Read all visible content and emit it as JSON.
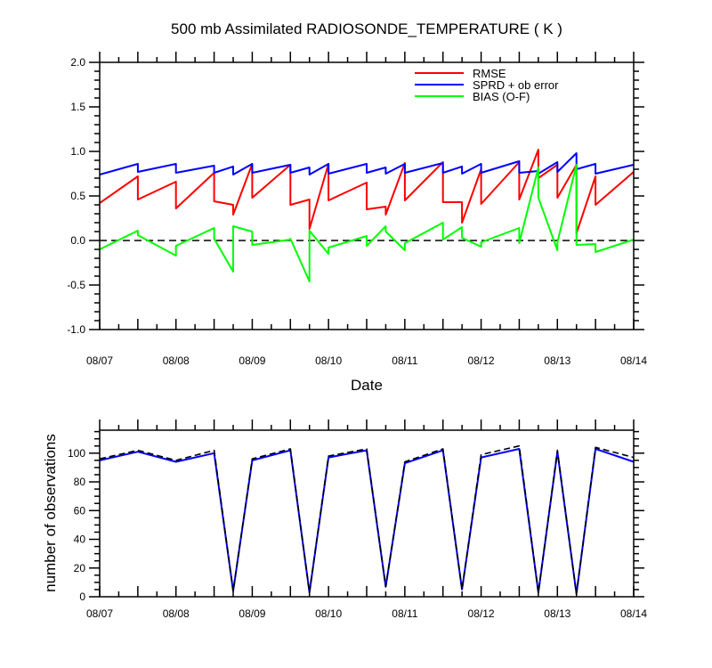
{
  "chart_data": [
    {
      "type": "line",
      "title": "500 mb Assimilated RADIOSONDE_TEMPERATURE ( K )",
      "xlabel": "Date",
      "ylabel": "",
      "x_tick_labels": [
        "08/07",
        "08/08",
        "08/09",
        "08/10",
        "08/11",
        "08/12",
        "08/13",
        "08/14"
      ],
      "x_tick_days": [
        7,
        8,
        9,
        10,
        11,
        12,
        13,
        14
      ],
      "xlim": [
        7,
        14
      ],
      "ylim": [
        -1.0,
        2.0
      ],
      "y_ticks": [
        -1.0,
        -0.5,
        0.0,
        0.5,
        1.0,
        1.5,
        2.0
      ],
      "y_tick_labels": [
        "-1.0",
        "-0.5",
        "0.0",
        "0.5",
        "1.0",
        "1.5",
        "2.0"
      ],
      "reference_line": {
        "y": 0.0,
        "style": "dashed",
        "color": "#000000"
      },
      "legend_position": "top-right",
      "series": [
        {
          "name": "RMSE",
          "color": "#ff0000",
          "x": [
            7.0,
            7.5,
            7.5,
            8.0,
            8.0,
            8.5,
            8.5,
            8.75,
            8.75,
            9.0,
            9.0,
            9.5,
            9.5,
            9.75,
            9.75,
            10.0,
            10.0,
            10.5,
            10.5,
            10.75,
            10.75,
            11.0,
            11.0,
            11.5,
            11.5,
            11.75,
            11.75,
            12.0,
            12.0,
            12.5,
            12.5,
            12.75,
            12.75,
            13.0,
            13.0,
            13.25,
            13.25,
            13.5,
            13.5,
            14.0
          ],
          "y": [
            0.42,
            0.72,
            0.46,
            0.66,
            0.36,
            0.76,
            0.44,
            0.4,
            0.29,
            0.86,
            0.48,
            0.85,
            0.4,
            0.46,
            0.13,
            0.86,
            0.45,
            0.65,
            0.35,
            0.38,
            0.29,
            0.87,
            0.45,
            0.88,
            0.43,
            0.43,
            0.2,
            0.8,
            0.41,
            0.88,
            0.46,
            1.02,
            0.7,
            0.85,
            0.48,
            0.85,
            0.08,
            0.72,
            0.4,
            0.77
          ]
        },
        {
          "name": "SPRD + ob error",
          "color": "#0000ff",
          "x": [
            7.0,
            7.5,
            7.5,
            8.0,
            8.0,
            8.5,
            8.5,
            8.75,
            8.75,
            9.0,
            9.0,
            9.5,
            9.5,
            9.75,
            9.75,
            10.0,
            10.0,
            10.5,
            10.5,
            10.75,
            10.75,
            11.0,
            11.0,
            11.5,
            11.5,
            11.75,
            11.75,
            12.0,
            12.0,
            12.5,
            12.5,
            12.75,
            12.75,
            13.0,
            13.0,
            13.25,
            13.25,
            13.5,
            13.5,
            14.0
          ],
          "y": [
            0.74,
            0.86,
            0.77,
            0.86,
            0.76,
            0.84,
            0.76,
            0.83,
            0.74,
            0.86,
            0.76,
            0.85,
            0.76,
            0.82,
            0.74,
            0.86,
            0.75,
            0.86,
            0.76,
            0.82,
            0.75,
            0.86,
            0.76,
            0.87,
            0.76,
            0.83,
            0.75,
            0.86,
            0.76,
            0.89,
            0.76,
            0.78,
            0.75,
            0.88,
            0.77,
            0.98,
            0.8,
            0.86,
            0.75,
            0.85
          ]
        },
        {
          "name": "BIAS (O-F)",
          "color": "#00ff00",
          "x": [
            7.0,
            7.5,
            7.5,
            8.0,
            8.0,
            8.5,
            8.5,
            8.75,
            8.75,
            9.0,
            9.0,
            9.5,
            9.5,
            9.75,
            9.75,
            10.0,
            10.0,
            10.5,
            10.5,
            10.75,
            10.75,
            11.0,
            11.0,
            11.5,
            11.5,
            11.75,
            11.75,
            12.0,
            12.0,
            12.5,
            12.5,
            12.75,
            12.75,
            13.0,
            13.0,
            13.25,
            13.25,
            13.5,
            13.5,
            14.0
          ],
          "y": [
            -0.1,
            0.11,
            0.06,
            -0.17,
            -0.06,
            0.14,
            0.02,
            -0.35,
            0.16,
            0.1,
            -0.05,
            0.01,
            0.02,
            -0.46,
            0.11,
            -0.15,
            -0.08,
            0.05,
            -0.06,
            0.16,
            0.1,
            -0.11,
            -0.03,
            0.2,
            0.01,
            0.15,
            0.03,
            -0.07,
            -0.02,
            0.14,
            -0.03,
            0.82,
            0.48,
            -0.11,
            -0.02,
            0.85,
            -0.05,
            -0.04,
            -0.13,
            0.01
          ]
        }
      ]
    },
    {
      "type": "line",
      "title": "",
      "xlabel": "",
      "ylabel": "number of observations",
      "x_tick_labels": [
        "08/07",
        "08/08",
        "08/09",
        "08/10",
        "08/11",
        "08/12",
        "08/13",
        "08/14"
      ],
      "x_tick_days": [
        7,
        8,
        9,
        10,
        11,
        12,
        13,
        14
      ],
      "xlim": [
        7,
        14
      ],
      "ylim": [
        0,
        116
      ],
      "y_ticks": [
        0,
        20,
        40,
        60,
        80,
        100
      ],
      "y_tick_labels": [
        "0",
        "20",
        "40",
        "60",
        "80",
        "100"
      ],
      "series": [
        {
          "color": "#0000ff",
          "style": "solid",
          "x": [
            7.0,
            7.5,
            8.0,
            8.5,
            8.75,
            9.0,
            9.5,
            9.75,
            10.0,
            10.5,
            10.75,
            11.0,
            11.5,
            11.75,
            12.0,
            12.5,
            12.75,
            13.0,
            13.25,
            13.5,
            14.0
          ],
          "y": [
            95,
            101,
            94,
            100,
            4,
            95,
            102,
            3,
            97,
            102,
            7,
            93,
            102,
            5,
            97,
            103,
            3,
            101,
            2,
            103,
            94
          ]
        },
        {
          "color": "#000000",
          "style": "dashed",
          "x": [
            7.0,
            7.5,
            8.0,
            8.5,
            8.75,
            9.0,
            9.5,
            9.75,
            10.0,
            10.5,
            10.75,
            11.0,
            11.5,
            11.75,
            12.0,
            12.5,
            12.75,
            13.0,
            13.25,
            13.5,
            14.0
          ],
          "y": [
            96,
            102,
            95,
            102,
            4,
            96,
            103,
            3,
            98,
            103,
            7,
            94,
            103,
            5,
            99,
            105,
            3,
            102,
            2,
            104,
            97
          ]
        }
      ]
    }
  ]
}
